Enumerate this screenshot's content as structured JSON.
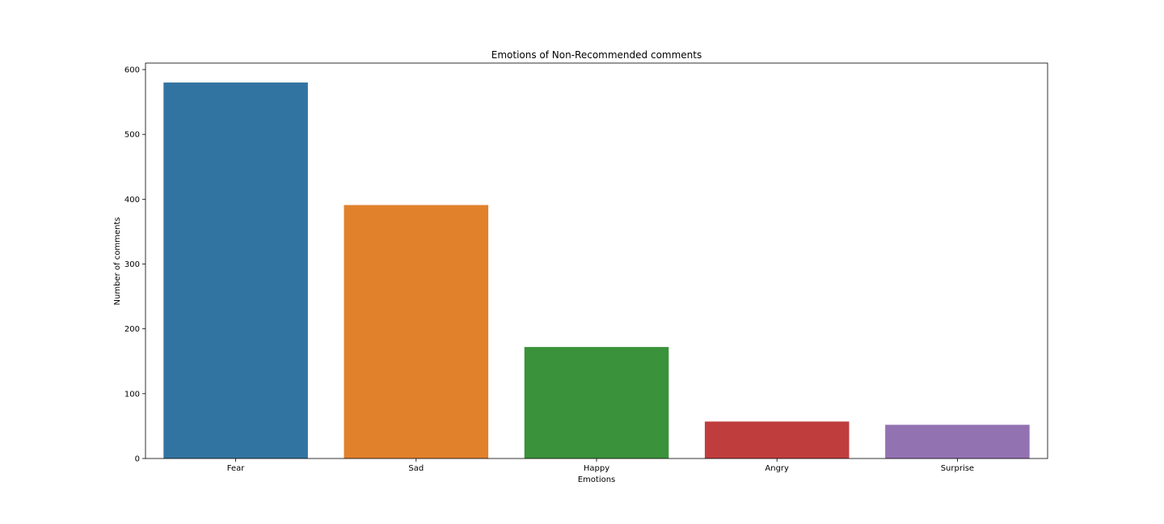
{
  "chart_data": {
    "type": "bar",
    "title": "Emotions of Non-Recommended comments",
    "xlabel": "Emotions",
    "ylabel": "Number of comments",
    "categories": [
      "Fear",
      "Sad",
      "Happy",
      "Angry",
      "Surprise"
    ],
    "values": [
      580,
      391,
      172,
      57,
      52
    ],
    "colors": [
      "#3274a1",
      "#e1812c",
      "#3a923a",
      "#c03d3e",
      "#9372b2"
    ],
    "ylim": [
      0,
      610
    ],
    "yticks": [
      0,
      100,
      200,
      300,
      400,
      500,
      600
    ],
    "grid": false,
    "legend": "none"
  }
}
